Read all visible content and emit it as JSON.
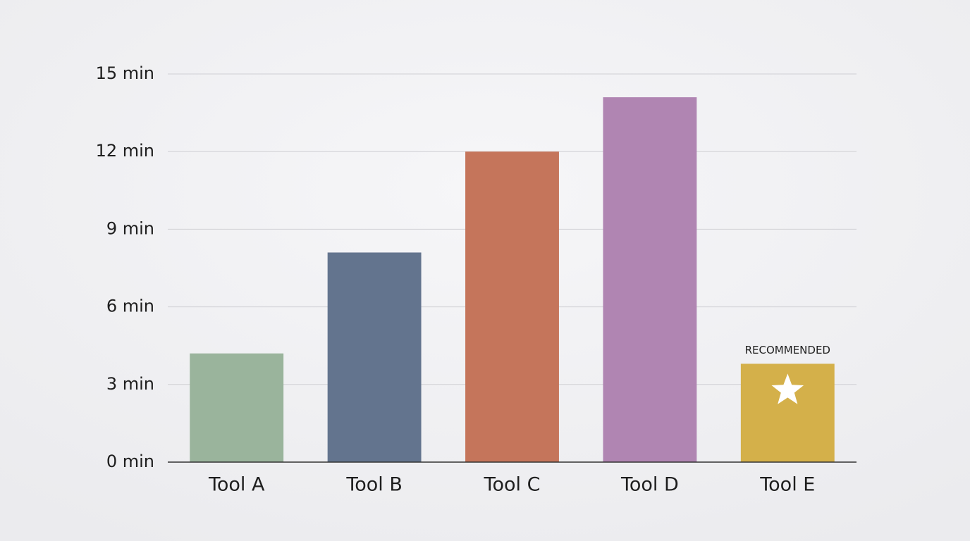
{
  "chart_data": {
    "type": "bar",
    "categories": [
      "Tool A",
      "Tool B",
      "Tool C",
      "Tool D",
      "Tool E"
    ],
    "values": [
      4.2,
      8.1,
      12.0,
      14.1,
      3.8
    ],
    "colors": [
      "#9ab49c",
      "#63748e",
      "#c5755b",
      "#b085b2",
      "#d4b04a"
    ],
    "ylim": [
      0,
      15
    ],
    "yticks": [
      {
        "value": 0,
        "label": "0 min"
      },
      {
        "value": 3,
        "label": "3 min"
      },
      {
        "value": 6,
        "label": "6 min"
      },
      {
        "value": 9,
        "label": "9 min"
      },
      {
        "value": 12,
        "label": "12 min"
      },
      {
        "value": 15,
        "label": "15 min"
      }
    ],
    "grid": true,
    "annotation": {
      "text": "RECOMMENDED",
      "category": "Tool E"
    }
  }
}
